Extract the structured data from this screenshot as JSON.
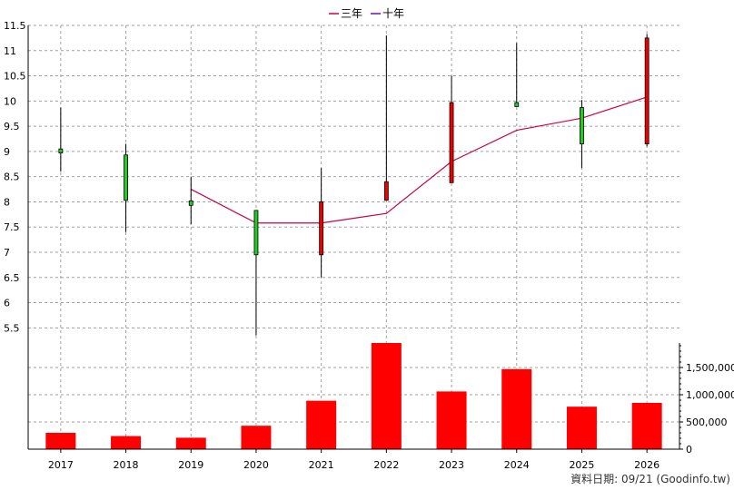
{
  "chart_data": {
    "type": "candlestick",
    "categories": [
      "2017",
      "2018",
      "2019",
      "2020",
      "2021",
      "2022",
      "2023",
      "2024",
      "2025",
      "2026"
    ],
    "legend": [
      {
        "label": "三年",
        "color": "#cc0044"
      },
      {
        "label": "十年",
        "color": "#6a0dad"
      }
    ],
    "price_axis": {
      "ylim": [
        5.2,
        11.5
      ],
      "ticks": [
        "5.5",
        "6",
        "6.5",
        "7",
        "7.5",
        "8",
        "8.5",
        "9",
        "9.5",
        "10",
        "10.5",
        "11",
        "11.5"
      ],
      "grid": true
    },
    "candles": [
      {
        "x": "2017",
        "open": 8.97,
        "close": 9.05,
        "high": 9.87,
        "low": 8.6
      },
      {
        "x": "2018",
        "open": 8.03,
        "close": 8.93,
        "high": 9.15,
        "low": 7.4
      },
      {
        "x": "2019",
        "open": 7.93,
        "close": 8.02,
        "high": 8.5,
        "low": 7.55
      },
      {
        "x": "2020",
        "open": 6.95,
        "close": 7.83,
        "high": 7.83,
        "low": 5.35
      },
      {
        "x": "2021",
        "open": 8.0,
        "close": 6.95,
        "high": 8.67,
        "low": 6.5
      },
      {
        "x": "2022",
        "open": 8.4,
        "close": 8.03,
        "high": 11.3,
        "low": 8.03
      },
      {
        "x": "2023",
        "open": 9.97,
        "close": 8.38,
        "high": 10.5,
        "low": 8.38
      },
      {
        "x": "2024",
        "open": 9.89,
        "close": 9.97,
        "high": 11.15,
        "low": 9.89
      },
      {
        "x": "2025",
        "open": 9.15,
        "close": 9.87,
        "high": 10.02,
        "low": 8.67
      },
      {
        "x": "2026",
        "open": 11.25,
        "close": 9.15,
        "high": 11.33,
        "low": 9.1
      }
    ],
    "up_color": "#22cc22",
    "down_color": "#ee0000",
    "series": [
      {
        "name": "三年",
        "color": "#cc0044",
        "x": [
          "2019",
          "2020",
          "2021",
          "2022",
          "2023",
          "2024",
          "2025",
          "2026"
        ],
        "values": [
          8.25,
          7.58,
          7.58,
          7.77,
          8.8,
          9.42,
          9.66,
          10.08
        ]
      }
    ],
    "volume": {
      "values": [
        300000,
        240000,
        210000,
        430000,
        890000,
        1950000,
        1060000,
        1470000,
        780000,
        850000
      ],
      "ylim": [
        0,
        1950000
      ],
      "ticks": [
        {
          "value": 0,
          "label": "0"
        },
        {
          "value": 500000,
          "label": "500,000"
        },
        {
          "value": 1000000,
          "label": "1,000,000"
        },
        {
          "value": 1500000,
          "label": "1,500,000"
        }
      ],
      "color": "#ff0000"
    }
  },
  "footer": {
    "credit": "資料日期: 09/21  (Goodinfo.tw)"
  }
}
